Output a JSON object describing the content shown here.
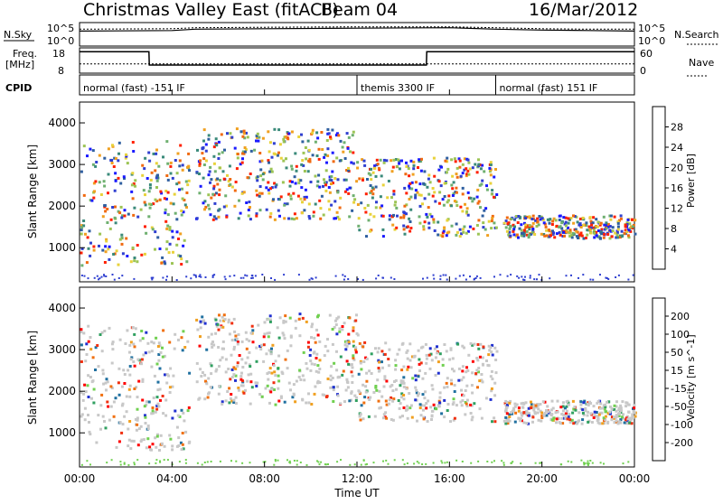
{
  "header": {
    "title": "Christmas Valley East (fitACF)",
    "beam": "Beam 04",
    "date": "16/Mar/2012"
  },
  "left_labels": {
    "nsky": "N.Sky",
    "freq": "Freq.",
    "mhz": "[MHz]",
    "cpid": "CPID"
  },
  "right_labels": {
    "nsearch": "N.Search",
    "nave": "Nave"
  },
  "colors": {
    "power": [
      "#1a1aff",
      "#2f3fd0",
      "#2f5fa0",
      "#3a8a7a",
      "#6fb070",
      "#9cc455",
      "#e8d23a",
      "#f0a020",
      "#f06a10",
      "#ff2000"
    ],
    "velocity": [
      "#2030d0",
      "#2070a0",
      "#30a060",
      "#70d050",
      "#c8c8c8",
      "#c8c8c8",
      "#f0a020",
      "#f07010",
      "#f03010",
      "#ff0000"
    ]
  },
  "chart_data": [
    {
      "type": "line",
      "name": "noise-panel",
      "left_ticks": [
        "10^5",
        "10^0"
      ],
      "right_ticks": [
        "10^5",
        "10^0"
      ],
      "series": [
        {
          "name": "N.Sky",
          "x": [
            "00:00",
            "04:00",
            "05:00",
            "08:00",
            "12:00",
            "16:00",
            "18:00",
            "20:00",
            "22:00",
            "24:00"
          ],
          "values": [
            3.2,
            3.3,
            3.6,
            3.7,
            3.8,
            3.9,
            3.6,
            3.4,
            3.3,
            3.2
          ]
        },
        {
          "name": "N.Search",
          "x": [
            "00:00",
            "04:00",
            "05:00",
            "08:00",
            "12:00",
            "16:00",
            "18:00",
            "20:00",
            "22:00",
            "24:00"
          ],
          "values": [
            3.6,
            3.7,
            3.9,
            4.0,
            4.1,
            4.1,
            3.9,
            3.7,
            3.6,
            3.6
          ]
        }
      ]
    },
    {
      "type": "line",
      "name": "freq-nave-panel",
      "left_ticks": [
        "18",
        "8"
      ],
      "right_ticks": [
        "60",
        "0"
      ],
      "series": [
        {
          "name": "Freq.",
          "x": [
            "00:00",
            "03:00",
            "03:01",
            "15:00",
            "15:01",
            "24:00"
          ],
          "values": [
            16.5,
            16.5,
            11.2,
            11.2,
            16.5,
            16.5
          ]
        },
        {
          "name": "Nave",
          "x": [
            "00:00",
            "24:00"
          ],
          "values": [
            22,
            22
          ]
        }
      ]
    },
    {
      "type": "table",
      "name": "cpid-bar",
      "segments": [
        {
          "start": "00:00",
          "end": "12:00",
          "label": "normal (fast) -151 IF"
        },
        {
          "start": "12:00",
          "end": "18:00",
          "label": "themis 3300 IF"
        },
        {
          "start": "18:00",
          "end": "24:00",
          "label": "normal (fast) 151 IF"
        }
      ]
    },
    {
      "type": "heatmap",
      "name": "power-panel",
      "ylabel": "Slant Range [km]",
      "ylim": [
        180,
        4500
      ],
      "yticks": [
        "1000",
        "2000",
        "3000",
        "4000"
      ],
      "colorbar_label": "Power [dB]",
      "colorbar_range": [
        0,
        32
      ],
      "colorbar_ticks": [
        "4",
        "8",
        "12",
        "16",
        "20",
        "24",
        "28"
      ],
      "bands": [
        {
          "from": 0.0,
          "to": 4.7,
          "lo": 600,
          "hi": 3600
        },
        {
          "from": 5.0,
          "to": 12.0,
          "lo": 1700,
          "hi": 3900
        },
        {
          "from": 12.0,
          "to": 18.0,
          "lo": 1300,
          "hi": 3200
        },
        {
          "from": 18.3,
          "to": 24.0,
          "lo": 1250,
          "hi": 1800
        }
      ]
    },
    {
      "type": "heatmap",
      "name": "velocity-panel",
      "ylabel": "Slant Range [km]",
      "ylim": [
        180,
        4500
      ],
      "yticks": [
        "1000",
        "2000",
        "3000",
        "4000"
      ],
      "colorbar_label": "Velocity [m s^-1]",
      "colorbar_range": [
        -250,
        250
      ],
      "colorbar_ticks": [
        "200",
        "100",
        "50",
        "15",
        "-15",
        "-50",
        "-100",
        "-200"
      ]
    },
    {
      "type": "line",
      "name": "time-axis",
      "xlabel": "Time UT",
      "xticks": [
        "00:00",
        "04:00",
        "08:00",
        "12:00",
        "16:00",
        "20:00",
        "00:00"
      ],
      "xlim": [
        0,
        24
      ]
    }
  ]
}
